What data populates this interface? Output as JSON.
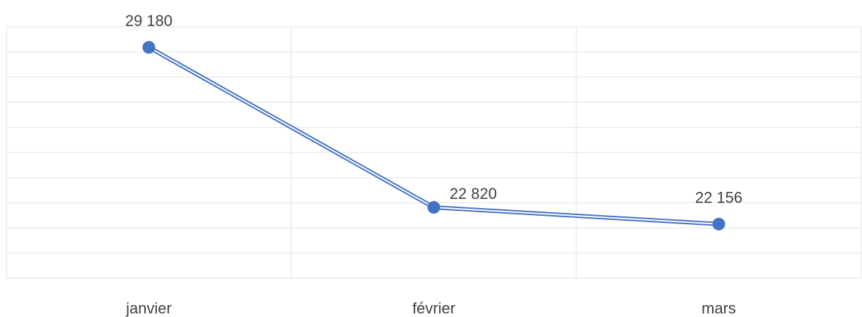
{
  "chart_data": {
    "type": "line",
    "categories": [
      "janvier",
      "février",
      "mars"
    ],
    "series": [
      {
        "color": "#4472c4",
        "values": [
          29180,
          22820,
          22156
        ],
        "value_labels": [
          "29 180",
          "22 820",
          "22 156"
        ]
      }
    ],
    "ylim": [
      20000,
      30000
    ],
    "yticks": [
      20000,
      21000,
      22000,
      23000,
      24000,
      25000,
      26000,
      27000,
      28000,
      29000,
      30000
    ],
    "grid": true
  }
}
